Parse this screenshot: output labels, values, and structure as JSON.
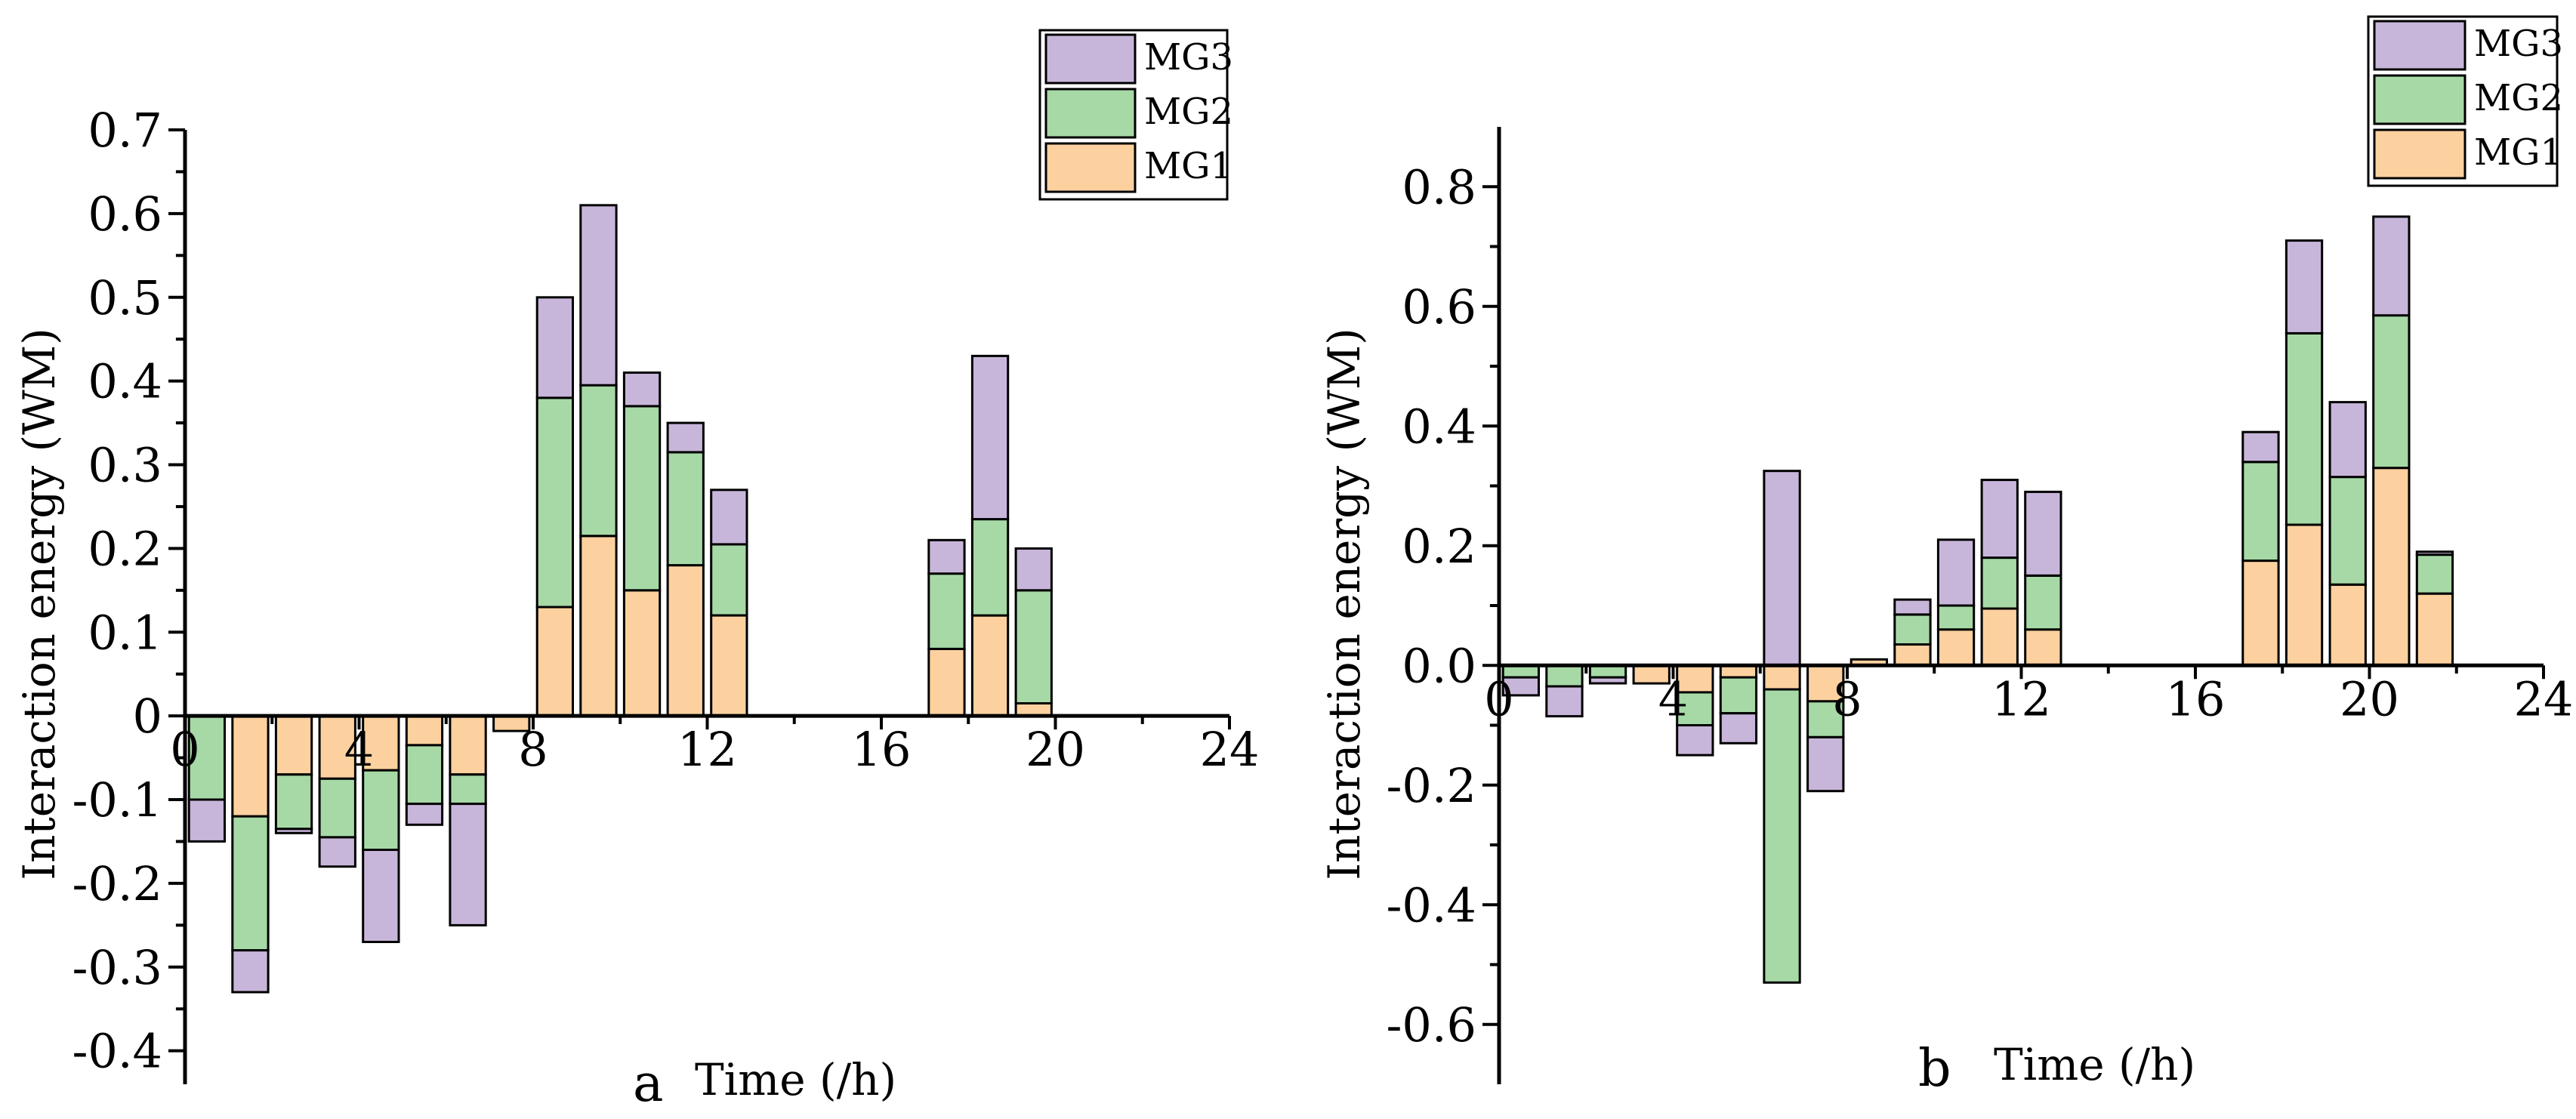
{
  "chart_data": [
    {
      "type": "bar",
      "stacked": true,
      "panel_label": "a",
      "title": "",
      "xlabel": "Time (/h)",
      "ylabel": "Interaction energy (WM)",
      "x": [
        1,
        2,
        3,
        4,
        5,
        6,
        7,
        8,
        9,
        10,
        11,
        12,
        13,
        14,
        15,
        16,
        17,
        18,
        19,
        20,
        21,
        22,
        23,
        24
      ],
      "xlim": [
        0,
        24
      ],
      "xticks": [
        0,
        4,
        8,
        12,
        16,
        20,
        24
      ],
      "xtick_labels": [
        "0",
        "4",
        "8",
        "12",
        "16",
        "20",
        "24"
      ],
      "ylim": [
        -0.44,
        0.7
      ],
      "yticks": [
        -0.4,
        -0.3,
        -0.2,
        -0.1,
        0,
        0.1,
        0.2,
        0.3,
        0.4,
        0.5,
        0.6,
        0.7
      ],
      "ytick_labels": [
        "-0.4",
        "-0.3",
        "-0.2",
        "-0.1",
        "0",
        "0.1",
        "0.2",
        "0.3",
        "0.4",
        "0.5",
        "0.6",
        "0.7"
      ],
      "series": [
        {
          "name": "MG1",
          "color": "#fcd19f",
          "values": [
            0,
            -0.12,
            -0.07,
            -0.075,
            -0.065,
            -0.035,
            -0.07,
            -0.018,
            0.13,
            0.215,
            0.15,
            0.18,
            0.12,
            0,
            0,
            0,
            0,
            0.08,
            0.12,
            0.015,
            0,
            0,
            0,
            0
          ]
        },
        {
          "name": "MG2",
          "color": "#a6d9a6",
          "values": [
            -0.1,
            -0.16,
            -0.065,
            -0.07,
            -0.095,
            -0.07,
            -0.035,
            0,
            0.25,
            0.18,
            0.22,
            0.135,
            0.085,
            0,
            0,
            0,
            0,
            0.09,
            0.115,
            0.135,
            0,
            0,
            0,
            0
          ]
        },
        {
          "name": "MG3",
          "color": "#c8b6da",
          "values": [
            -0.05,
            -0.05,
            -0.005,
            -0.035,
            -0.11,
            -0.025,
            -0.145,
            0,
            0.12,
            0.215,
            0.04,
            0.035,
            0.065,
            0,
            0,
            0,
            0,
            0.04,
            0.195,
            0.05,
            0,
            0,
            0,
            0
          ]
        }
      ],
      "legend": {
        "placement": "top-right",
        "entries": [
          "MG3",
          "MG2",
          "MG1"
        ]
      }
    },
    {
      "type": "bar",
      "stacked": true,
      "panel_label": "b",
      "title": "",
      "xlabel": "Time (/h)",
      "ylabel": "Interaction energy (WM)",
      "x": [
        1,
        2,
        3,
        4,
        5,
        6,
        7,
        8,
        9,
        10,
        11,
        12,
        13,
        14,
        15,
        16,
        17,
        18,
        19,
        20,
        21,
        22,
        23,
        24
      ],
      "xlim": [
        0,
        24
      ],
      "xticks": [
        0,
        4,
        8,
        12,
        16,
        20,
        24
      ],
      "xtick_labels": [
        "0",
        "4",
        "8",
        "12",
        "16",
        "20",
        "24"
      ],
      "ylim": [
        -0.7,
        0.9
      ],
      "yticks": [
        -0.6,
        -0.4,
        -0.2,
        0,
        0.2,
        0.4,
        0.6,
        0.8
      ],
      "ytick_labels": [
        "-0.6",
        "-0.4",
        "-0.2",
        "0.0",
        "0.2",
        "0.4",
        "0.6",
        "0.8"
      ],
      "series": [
        {
          "name": "MG1",
          "color": "#fcd19f",
          "values": [
            0,
            0,
            0,
            -0.03,
            -0.045,
            -0.02,
            -0.04,
            -0.06,
            0.01,
            0.035,
            0.06,
            0.095,
            0.06,
            0,
            0,
            0,
            0,
            0.175,
            0.235,
            0.135,
            0.33,
            0.12,
            0,
            0
          ]
        },
        {
          "name": "MG2",
          "color": "#a6d9a6",
          "values": [
            -0.02,
            -0.035,
            -0.02,
            0,
            -0.055,
            -0.06,
            -0.49,
            -0.06,
            0,
            0.05,
            0.04,
            0.085,
            0.09,
            0,
            0,
            0,
            0,
            0.165,
            0.32,
            0.18,
            0.255,
            0.065,
            0,
            0
          ]
        },
        {
          "name": "MG3",
          "color": "#c8b6da",
          "values": [
            -0.03,
            -0.05,
            -0.01,
            0,
            -0.05,
            -0.05,
            0.325,
            -0.09,
            0,
            0.025,
            0.11,
            0.13,
            0.14,
            0,
            0,
            0,
            0,
            0.05,
            0.155,
            0.125,
            0.165,
            0.005,
            0,
            0
          ]
        }
      ],
      "legend": {
        "placement": "top-right",
        "entries": [
          "MG3",
          "MG2",
          "MG1"
        ]
      }
    }
  ]
}
